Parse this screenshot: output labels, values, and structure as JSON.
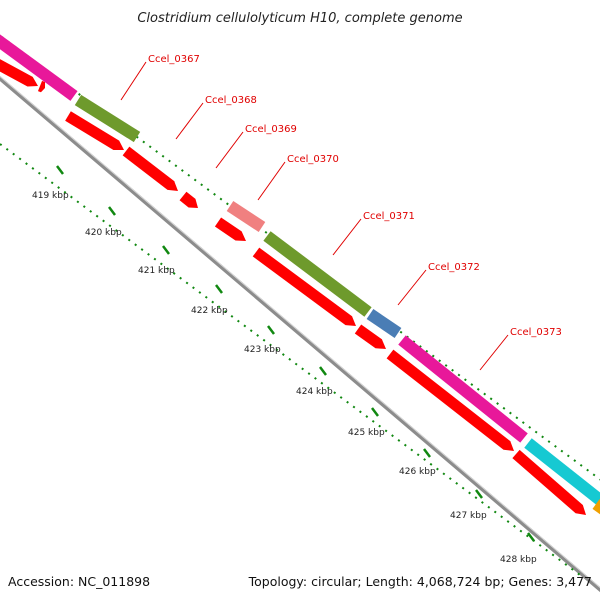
{
  "title": "Clostridium cellulolyticum H10, complete genome",
  "accession": "Accession: NC_011898",
  "topology": "Topology: circular; Length: 4,068,724 bp; Genes: 3,477",
  "tick_labels": [
    "419 kbp",
    "420 kbp",
    "421 kbp",
    "422 kbp",
    "423 kbp",
    "424 kbp",
    "425 kbp",
    "426 kbp",
    "427 kbp",
    "428 kbp"
  ],
  "gene_labels": [
    "Ccel_0367",
    "Ccel_0368",
    "Ccel_0369",
    "Ccel_0370",
    "Ccel_0371",
    "Ccel_0372",
    "Ccel_0373"
  ],
  "colors": {
    "cds": "#ff0000",
    "backbone": "#8c8c8c",
    "tick_dots": "#118811",
    "label_text": "#e00000",
    "cog_magenta": "#e8189a",
    "cog_olive": "#6e9a2c",
    "cog_pink": "#f08080",
    "cog_blue": "#4a7db5",
    "cog_cyan": "#16c9d2",
    "cog_orange": "#f0a000"
  }
}
